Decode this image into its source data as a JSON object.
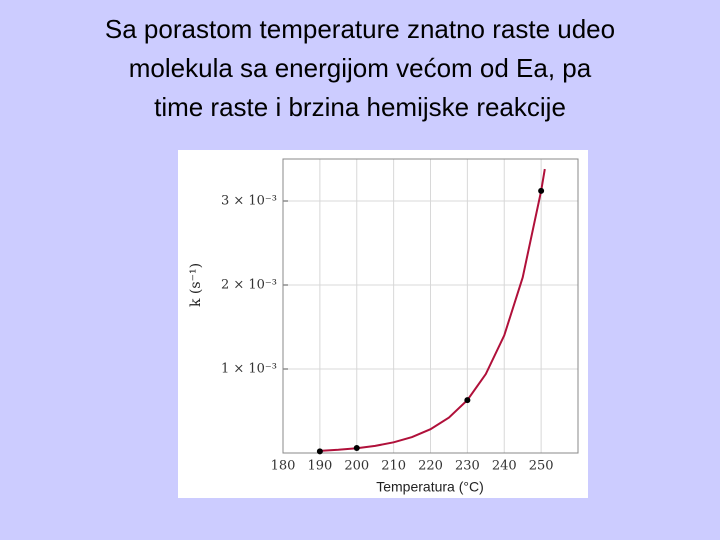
{
  "slide": {
    "title_lines": [
      "Sa porastom temperature znatno raste udeo",
      "molekula sa energijom većom od Ea, pa",
      "time raste i brzina hemijske reakcije"
    ]
  },
  "chart_data": {
    "type": "line",
    "xlabel": "Temperatura (°C)",
    "ylabel": "k (s⁻¹)",
    "xlim": [
      180,
      260
    ],
    "xticks": [
      180,
      190,
      200,
      210,
      220,
      230,
      240,
      250
    ],
    "ylim": [
      0,
      0.0035
    ],
    "yticks": [
      {
        "value": 0.001,
        "label": "1 × 10⁻³"
      },
      {
        "value": 0.002,
        "label": "2 × 10⁻³"
      },
      {
        "value": 0.003,
        "label": "3 × 10⁻³"
      }
    ],
    "grid": true,
    "color": "#b0103a",
    "curve": {
      "x": [
        190,
        195,
        200,
        205,
        210,
        215,
        220,
        225,
        230,
        235,
        240,
        245,
        250,
        251
      ],
      "values": [
        2.57e-05,
        3.83e-05,
        5.72e-05,
        8.5e-05,
        0.000127,
        0.00019,
        0.000283,
        0.000422,
        0.00063,
        0.00094,
        0.0014,
        0.00209,
        0.00312,
        0.00338
      ]
    },
    "points": {
      "x": [
        190,
        200,
        230,
        250
      ],
      "values": [
        2e-05,
        6e-05,
        0.00063,
        0.00312
      ],
      "color": "#000000"
    }
  }
}
